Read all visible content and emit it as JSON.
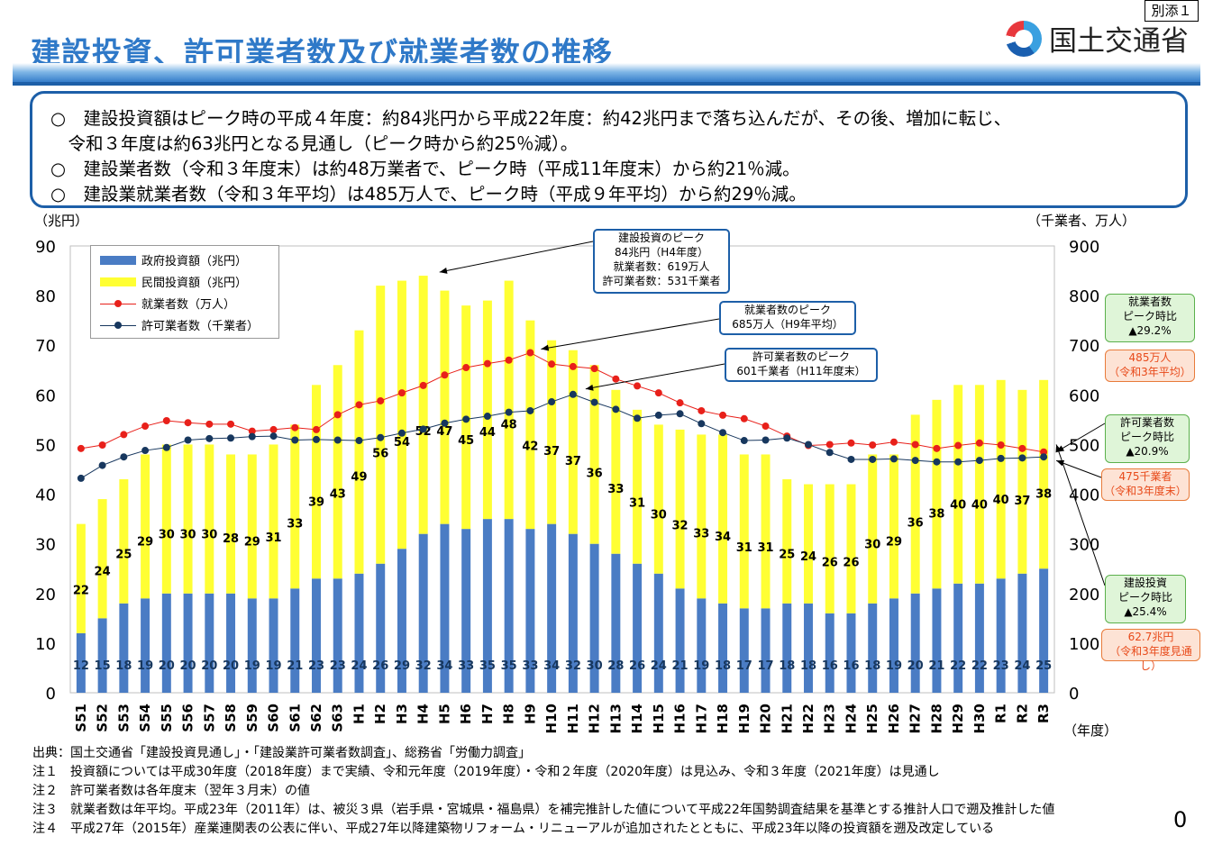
{
  "header": {
    "title": "建設投資、許可業者数及び就業者数の推移",
    "attachment_label": "別添１",
    "ministry_name": "国土交通省"
  },
  "summary": [
    "○　建設投資額はピーク時の平成４年度：約84兆円から平成22年度：約42兆円まで落ち込んだが、その後、増加に転じ、",
    "　令和３年度は約63兆円となる見通し（ピーク時から約25％減）。",
    "○　建設業者数（令和３年度末）は約48万業者で、ピーク時（平成11年度末）から約21％減。",
    "○　建設業就業者数（令和３年平均）は485万人で、ピーク時（平成９年平均）から約29％減。"
  ],
  "axes": {
    "left_unit": "（兆円）",
    "right_unit": "（千業者、万人）",
    "x_unit": "（年度）"
  },
  "callouts": {
    "investment_peak": [
      "建設投資のピーク",
      "84兆円（H4年度）",
      "就業者数：619万人",
      "許可業者数：531千業者"
    ],
    "workers_peak": [
      "就業者数のピーク",
      "685万人（H9年平均）"
    ],
    "licensed_peak": [
      "許可業者数のピーク",
      "601千業者（H11年度末）"
    ]
  },
  "side_boxes": {
    "workers_ratio": [
      "就業者数",
      "ピーク時比",
      "▲29.2%"
    ],
    "workers_value": [
      "485万人",
      "（令和3年平均）"
    ],
    "licensed_ratio": [
      "許可業者数",
      "ピーク時比",
      "▲20.9%"
    ],
    "licensed_value": [
      "475千業者",
      "（令和3年度末）"
    ],
    "investment_ratio": [
      "建設投資",
      "ピーク時比",
      "▲25.4%"
    ],
    "investment_value": [
      "62.7兆円",
      "（令和3年度見通し）"
    ]
  },
  "notes": [
    "出典：国土交通省「建設投資見通し」・「建設業許可業者数調査」、総務省「労働力調査」",
    "注１　投資額については平成30年度（2018年度）まで実績、令和元年度（2019年度）・令和２年度（2020年度）は見込み、令和３年度（2021年度）は見通し",
    "注２　許可業者数は各年度末（翌年３月末）の値",
    "注３　就業者数は年平均。平成23年（2011年）は、被災３県（岩手県・宮城県・福島県）を補完推計した値について平成22年国勢調査結果を基準とする推計人口で遡及推計した値",
    "注４　平成27年（2015年）産業連関表の公表に伴い、平成27年以降建築物リフォーム・リニューアルが追加されたとともに、平成23年以降の投資額を遡及改定している"
  ],
  "page_number": "0",
  "colors": {
    "government": "#4a7cc4",
    "private": "#ffff33",
    "workers": "#e8201a",
    "licensed": "#17375e",
    "title": "#2f79c8"
  },
  "chart_data": {
    "type": "bar",
    "stacked": true,
    "categories": [
      "S51",
      "S52",
      "S53",
      "S54",
      "S55",
      "S56",
      "S57",
      "S58",
      "S59",
      "S60",
      "S61",
      "S62",
      "S63",
      "H1",
      "H2",
      "H3",
      "H4",
      "H5",
      "H6",
      "H7",
      "H8",
      "H9",
      "H10",
      "H11",
      "H12",
      "H13",
      "H14",
      "H15",
      "H16",
      "H17",
      "H18",
      "H19",
      "H20",
      "H21",
      "H22",
      "H23",
      "H24",
      "H25",
      "H26",
      "H27",
      "H28",
      "H29",
      "H30",
      "R1",
      "R2",
      "R3"
    ],
    "series": [
      {
        "name": "政府投資額（兆円）",
        "type": "bar",
        "axis": "left",
        "values": [
          12,
          15,
          18,
          19,
          20,
          20,
          20,
          20,
          19,
          19,
          21,
          23,
          23,
          24,
          26,
          29,
          32,
          34,
          33,
          35,
          35,
          33,
          34,
          32,
          30,
          28,
          26,
          24,
          21,
          19,
          18,
          17,
          17,
          18,
          18,
          16,
          16,
          18,
          19,
          20,
          21,
          22,
          22,
          23,
          24,
          25
        ]
      },
      {
        "name": "民間投資額（兆円）",
        "type": "bar",
        "axis": "left",
        "values": [
          22,
          24,
          25,
          29,
          30,
          30,
          30,
          28,
          29,
          31,
          33,
          39,
          43,
          49,
          56,
          54,
          52,
          47,
          45,
          44,
          48,
          42,
          37,
          37,
          36,
          33,
          31,
          30,
          32,
          33,
          34,
          31,
          31,
          25,
          24,
          26,
          26,
          30,
          29,
          36,
          38,
          40,
          40,
          40,
          37,
          38
        ]
      },
      {
        "name": "就業者数（万人）",
        "type": "line",
        "axis": "right",
        "values": [
          492,
          499,
          520,
          537,
          548,
          544,
          541,
          541,
          527,
          530,
          534,
          530,
          560,
          580,
          588,
          604,
          619,
          640,
          655,
          663,
          670,
          685,
          662,
          657,
          653,
          632,
          618,
          604,
          584,
          568,
          559,
          552,
          537,
          517,
          498,
          500,
          503,
          499,
          505,
          500,
          492,
          498,
          503,
          499,
          492,
          485
        ]
      },
      {
        "name": "許可業者数（千業者）",
        "type": "line",
        "axis": "right",
        "values": [
          432,
          458,
          475,
          488,
          494,
          509,
          512,
          513,
          516,
          517,
          509,
          510,
          509,
          508,
          514,
          523,
          531,
          543,
          551,
          557,
          565,
          568,
          586,
          601,
          585,
          571,
          553,
          559,
          562,
          542,
          524,
          508,
          509,
          513,
          500,
          484,
          470,
          470,
          471,
          468,
          465,
          465,
          468,
          472,
          473,
          475
        ]
      }
    ],
    "left_axis": {
      "label": "（兆円）",
      "ylim": [
        0,
        90
      ],
      "ticks": [
        0,
        10,
        20,
        30,
        40,
        50,
        60,
        70,
        80,
        90
      ]
    },
    "right_axis": {
      "label": "（千業者、万人）",
      "ylim": [
        0,
        900
      ],
      "ticks": [
        0,
        100,
        200,
        300,
        400,
        500,
        600,
        700,
        800,
        900
      ]
    },
    "xlabel": "（年度）",
    "legend_position": "top-left",
    "grid": false
  }
}
